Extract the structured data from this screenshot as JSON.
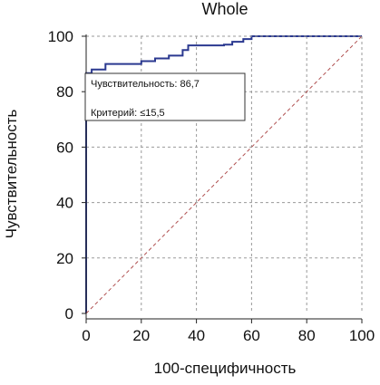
{
  "chart_data": {
    "type": "line",
    "title": "Whole",
    "xlabel": "100-специфичность",
    "ylabel": "Чувствительность",
    "xlim": [
      0,
      100
    ],
    "ylim": [
      0,
      100
    ],
    "x_ticks": [
      0,
      20,
      40,
      60,
      80,
      100
    ],
    "y_ticks": [
      0,
      20,
      40,
      60,
      80,
      100
    ],
    "grid": true,
    "series": [
      {
        "color": "#2b3990",
        "style": "step",
        "x": [
          0,
          0,
          2,
          2,
          7,
          7,
          20,
          20,
          25,
          25,
          30,
          30,
          35,
          35,
          37,
          37,
          50,
          50,
          53,
          53,
          57,
          57,
          60,
          60,
          100
        ],
        "y": [
          0,
          86.7,
          86.7,
          88,
          88,
          90,
          90,
          91,
          91,
          92,
          92,
          93,
          93,
          95,
          95,
          96.7,
          96.7,
          97,
          97,
          98,
          98,
          99,
          99,
          100,
          100
        ]
      },
      {
        "color": "#b05050",
        "style": "dashed",
        "x": [
          0,
          100
        ],
        "y": [
          0,
          100
        ]
      }
    ],
    "annotation_lines": [
      "Чувствительность: 86,7",
      "",
      "Критерий: ≤15,5"
    ]
  }
}
